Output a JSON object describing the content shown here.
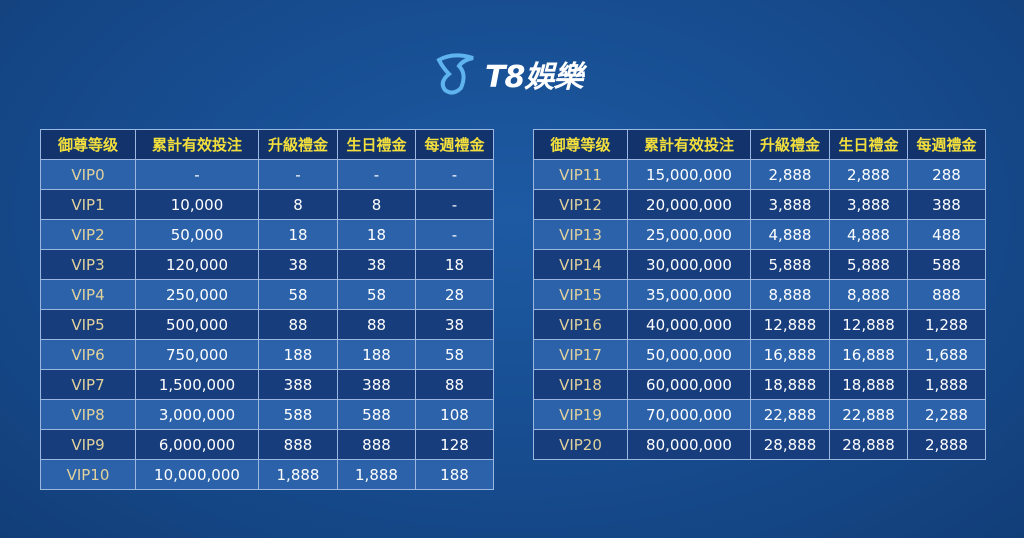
{
  "brand": {
    "name": "T8娛樂"
  },
  "colors": {
    "header_text": "#f3df3c",
    "vip_text": "#e2d29c",
    "row_light": "#2b62aa",
    "row_dark": "#173d7d",
    "header_bg": "#12336c"
  },
  "headers": [
    "御尊等级",
    "累計有效投注",
    "升級禮金",
    "生日禮金",
    "每週禮金"
  ],
  "table_left": [
    [
      "VIP0",
      "-",
      "-",
      "-",
      "-"
    ],
    [
      "VIP1",
      "10,000",
      "8",
      "8",
      "-"
    ],
    [
      "VIP2",
      "50,000",
      "18",
      "18",
      "-"
    ],
    [
      "VIP3",
      "120,000",
      "38",
      "38",
      "18"
    ],
    [
      "VIP4",
      "250,000",
      "58",
      "58",
      "28"
    ],
    [
      "VIP5",
      "500,000",
      "88",
      "88",
      "38"
    ],
    [
      "VIP6",
      "750,000",
      "188",
      "188",
      "58"
    ],
    [
      "VIP7",
      "1,500,000",
      "388",
      "388",
      "88"
    ],
    [
      "VIP8",
      "3,000,000",
      "588",
      "588",
      "108"
    ],
    [
      "VIP9",
      "6,000,000",
      "888",
      "888",
      "128"
    ],
    [
      "VIP10",
      "10,000,000",
      "1,888",
      "1,888",
      "188"
    ]
  ],
  "table_right": [
    [
      "VIP11",
      "15,000,000",
      "2,888",
      "2,888",
      "288"
    ],
    [
      "VIP12",
      "20,000,000",
      "3,888",
      "3,888",
      "388"
    ],
    [
      "VIP13",
      "25,000,000",
      "4,888",
      "4,888",
      "488"
    ],
    [
      "VIP14",
      "30,000,000",
      "5,888",
      "5,888",
      "588"
    ],
    [
      "VIP15",
      "35,000,000",
      "8,888",
      "8,888",
      "888"
    ],
    [
      "VIP16",
      "40,000,000",
      "12,888",
      "12,888",
      "1,288"
    ],
    [
      "VIP17",
      "50,000,000",
      "16,888",
      "16,888",
      "1,688"
    ],
    [
      "VIP18",
      "60,000,000",
      "18,888",
      "18,888",
      "1,888"
    ],
    [
      "VIP19",
      "70,000,000",
      "22,888",
      "22,888",
      "2,288"
    ],
    [
      "VIP20",
      "80,000,000",
      "28,888",
      "28,888",
      "2,888"
    ]
  ]
}
